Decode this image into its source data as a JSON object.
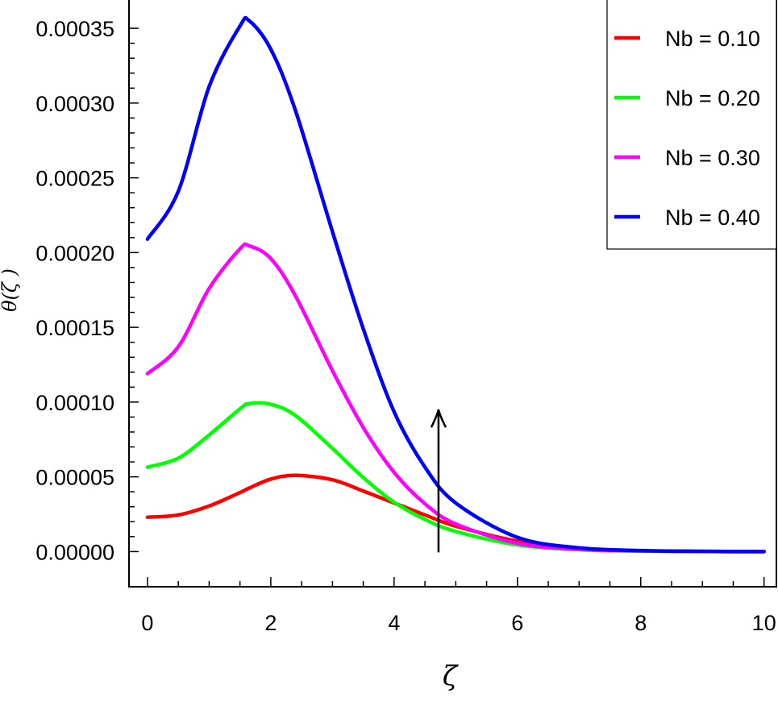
{
  "chart_data": {
    "type": "line",
    "xlabel": "ζ",
    "ylabel": "θ(ζ )",
    "xlim": [
      -0.3,
      10.2
    ],
    "ylim": [
      -2.35e-05,
      0.00037
    ],
    "x_ticks": [
      0,
      2,
      4,
      6,
      8,
      10
    ],
    "x_tick_labels": [
      "0",
      "2",
      "4",
      "6",
      "8",
      "10"
    ],
    "y_ticks": [
      0,
      5e-05,
      0.0001,
      0.00015,
      0.0002,
      0.00025,
      0.0003,
      0.00035
    ],
    "y_tick_labels": [
      "0.00000",
      "0.00005",
      "0.00010",
      "0.00015",
      "0.00020",
      "0.00025",
      "0.00030",
      "0.00035"
    ],
    "grid": false,
    "legend": {
      "position": "top-right"
    },
    "annotations": [
      {
        "type": "arrow",
        "description": "increasing Nb",
        "x": 4.72,
        "y_from": -5e-07,
        "y_to": 9.5e-05
      }
    ],
    "x": [
      0,
      0.5,
      1,
      1.5,
      1.65,
      2,
      2.4,
      3,
      3.5,
      4,
      4.5,
      5,
      6,
      7,
      8,
      9,
      10
    ],
    "series": [
      {
        "name": "Nb = 0.10",
        "color": "#ff0000",
        "values": [
          2.3e-05,
          2.45e-05,
          3.05e-05,
          3.95e-05,
          4.25e-05,
          4.85e-05,
          5.1e-05,
          4.8e-05,
          4.05e-05,
          3.25e-05,
          2.45e-05,
          1.7e-05,
          7e-06,
          2e-06,
          5e-07,
          1e-07,
          0
        ]
      },
      {
        "name": "Nb = 0.20",
        "color": "#00ff00",
        "values": [
          5.65e-05,
          6.25e-05,
          7.8e-05,
          9.55e-05,
          9.9e-05,
          9.85e-05,
          9.1e-05,
          6.9e-05,
          4.95e-05,
          3.3e-05,
          2.15e-05,
          1.35e-05,
          4.5e-06,
          1.3e-06,
          4e-07,
          1e-07,
          0
        ]
      },
      {
        "name": "Nb = 0.30",
        "color": "#ff00ff",
        "values": [
          0.000119,
          0.000137,
          0.000176,
          0.0002025,
          0.0002045,
          0.000196,
          0.000171,
          0.000121,
          8.3e-05,
          5.3e-05,
          3.2e-05,
          1.85e-05,
          5.5e-06,
          1.5e-06,
          5e-07,
          1e-07,
          0
        ]
      },
      {
        "name": "Nb = 0.40",
        "color": "#0000ff",
        "values": [
          0.000209,
          0.000241,
          0.000311,
          0.0003515,
          0.000355,
          0.000336,
          0.000295,
          0.000214,
          0.000149,
          9.35e-05,
          5.65e-05,
          3.25e-05,
          9.5e-06,
          2.5e-06,
          7e-07,
          2e-07,
          0
        ]
      }
    ]
  }
}
